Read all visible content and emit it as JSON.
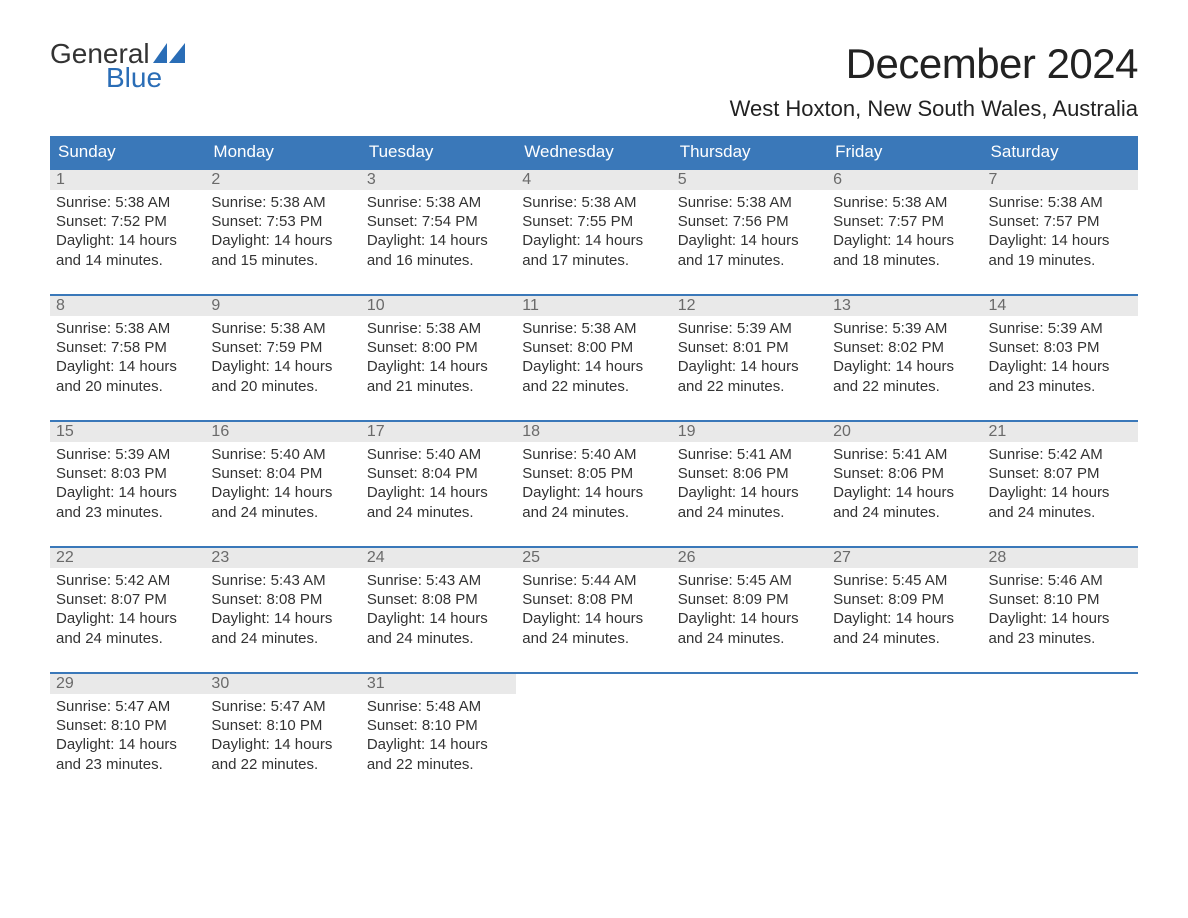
{
  "logo": {
    "word1": "General",
    "word2": "Blue"
  },
  "title": "December 2024",
  "location": "West Hoxton, New South Wales, Australia",
  "colors": {
    "header_bg": "#3a78b9",
    "header_text": "#ffffff",
    "daynum_bg": "#e9e9e9",
    "daynum_text": "#6a6a6a",
    "border": "#3a78b9",
    "logo_blue": "#2a6db6",
    "body_text": "#333333",
    "background": "#ffffff"
  },
  "day_names": [
    "Sunday",
    "Monday",
    "Tuesday",
    "Wednesday",
    "Thursday",
    "Friday",
    "Saturday"
  ],
  "weeks": [
    [
      {
        "n": "1",
        "sunrise": "5:38 AM",
        "sunset": "7:52 PM",
        "daylight": "14 hours and 14 minutes."
      },
      {
        "n": "2",
        "sunrise": "5:38 AM",
        "sunset": "7:53 PM",
        "daylight": "14 hours and 15 minutes."
      },
      {
        "n": "3",
        "sunrise": "5:38 AM",
        "sunset": "7:54 PM",
        "daylight": "14 hours and 16 minutes."
      },
      {
        "n": "4",
        "sunrise": "5:38 AM",
        "sunset": "7:55 PM",
        "daylight": "14 hours and 17 minutes."
      },
      {
        "n": "5",
        "sunrise": "5:38 AM",
        "sunset": "7:56 PM",
        "daylight": "14 hours and 17 minutes."
      },
      {
        "n": "6",
        "sunrise": "5:38 AM",
        "sunset": "7:57 PM",
        "daylight": "14 hours and 18 minutes."
      },
      {
        "n": "7",
        "sunrise": "5:38 AM",
        "sunset": "7:57 PM",
        "daylight": "14 hours and 19 minutes."
      }
    ],
    [
      {
        "n": "8",
        "sunrise": "5:38 AM",
        "sunset": "7:58 PM",
        "daylight": "14 hours and 20 minutes."
      },
      {
        "n": "9",
        "sunrise": "5:38 AM",
        "sunset": "7:59 PM",
        "daylight": "14 hours and 20 minutes."
      },
      {
        "n": "10",
        "sunrise": "5:38 AM",
        "sunset": "8:00 PM",
        "daylight": "14 hours and 21 minutes."
      },
      {
        "n": "11",
        "sunrise": "5:38 AM",
        "sunset": "8:00 PM",
        "daylight": "14 hours and 22 minutes."
      },
      {
        "n": "12",
        "sunrise": "5:39 AM",
        "sunset": "8:01 PM",
        "daylight": "14 hours and 22 minutes."
      },
      {
        "n": "13",
        "sunrise": "5:39 AM",
        "sunset": "8:02 PM",
        "daylight": "14 hours and 22 minutes."
      },
      {
        "n": "14",
        "sunrise": "5:39 AM",
        "sunset": "8:03 PM",
        "daylight": "14 hours and 23 minutes."
      }
    ],
    [
      {
        "n": "15",
        "sunrise": "5:39 AM",
        "sunset": "8:03 PM",
        "daylight": "14 hours and 23 minutes."
      },
      {
        "n": "16",
        "sunrise": "5:40 AM",
        "sunset": "8:04 PM",
        "daylight": "14 hours and 24 minutes."
      },
      {
        "n": "17",
        "sunrise": "5:40 AM",
        "sunset": "8:04 PM",
        "daylight": "14 hours and 24 minutes."
      },
      {
        "n": "18",
        "sunrise": "5:40 AM",
        "sunset": "8:05 PM",
        "daylight": "14 hours and 24 minutes."
      },
      {
        "n": "19",
        "sunrise": "5:41 AM",
        "sunset": "8:06 PM",
        "daylight": "14 hours and 24 minutes."
      },
      {
        "n": "20",
        "sunrise": "5:41 AM",
        "sunset": "8:06 PM",
        "daylight": "14 hours and 24 minutes."
      },
      {
        "n": "21",
        "sunrise": "5:42 AM",
        "sunset": "8:07 PM",
        "daylight": "14 hours and 24 minutes."
      }
    ],
    [
      {
        "n": "22",
        "sunrise": "5:42 AM",
        "sunset": "8:07 PM",
        "daylight": "14 hours and 24 minutes."
      },
      {
        "n": "23",
        "sunrise": "5:43 AM",
        "sunset": "8:08 PM",
        "daylight": "14 hours and 24 minutes."
      },
      {
        "n": "24",
        "sunrise": "5:43 AM",
        "sunset": "8:08 PM",
        "daylight": "14 hours and 24 minutes."
      },
      {
        "n": "25",
        "sunrise": "5:44 AM",
        "sunset": "8:08 PM",
        "daylight": "14 hours and 24 minutes."
      },
      {
        "n": "26",
        "sunrise": "5:45 AM",
        "sunset": "8:09 PM",
        "daylight": "14 hours and 24 minutes."
      },
      {
        "n": "27",
        "sunrise": "5:45 AM",
        "sunset": "8:09 PM",
        "daylight": "14 hours and 24 minutes."
      },
      {
        "n": "28",
        "sunrise": "5:46 AM",
        "sunset": "8:10 PM",
        "daylight": "14 hours and 23 minutes."
      }
    ],
    [
      {
        "n": "29",
        "sunrise": "5:47 AM",
        "sunset": "8:10 PM",
        "daylight": "14 hours and 23 minutes."
      },
      {
        "n": "30",
        "sunrise": "5:47 AM",
        "sunset": "8:10 PM",
        "daylight": "14 hours and 22 minutes."
      },
      {
        "n": "31",
        "sunrise": "5:48 AM",
        "sunset": "8:10 PM",
        "daylight": "14 hours and 22 minutes."
      },
      null,
      null,
      null,
      null
    ]
  ],
  "labels": {
    "sunrise": "Sunrise:",
    "sunset": "Sunset:",
    "daylight": "Daylight:"
  }
}
